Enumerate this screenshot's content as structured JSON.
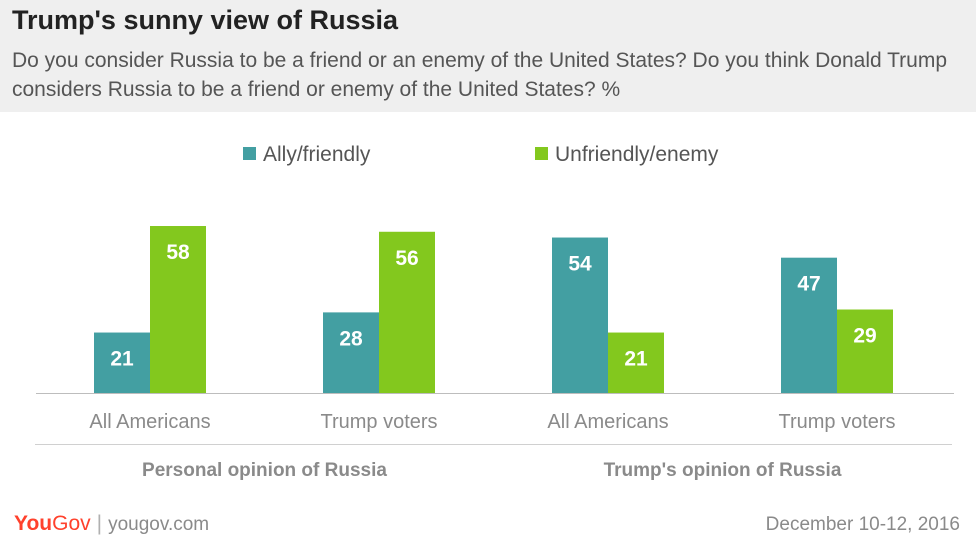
{
  "header": {
    "title": "Trump's sunny view of Russia",
    "subtitle": "Do you consider Russia to be a friend or an enemy of the United States? Do you think Donald Trump considers Russia to be a friend or enemy of the United States? %"
  },
  "footer": {
    "brand_you": "You",
    "brand_gov": "Gov",
    "separator": "|",
    "url": "yougov.com",
    "date": "December 10-12, 2016"
  },
  "chart_data": {
    "type": "bar",
    "categories": [
      "All Americans",
      "Trump voters",
      "All Americans",
      "Trump voters"
    ],
    "groups": [
      {
        "label": "Personal opinion of Russia",
        "categories": [
          0,
          1
        ]
      },
      {
        "label": "Trump's opinion of Russia",
        "categories": [
          2,
          3
        ]
      }
    ],
    "series": [
      {
        "name": "Ally/friendly",
        "color": "#439fa2",
        "values": [
          21,
          28,
          54,
          47
        ]
      },
      {
        "name": "Unfriendly/enemy",
        "color": "#83c81e",
        "values": [
          58,
          56,
          21,
          29
        ]
      }
    ],
    "ylim": [
      0,
      60
    ],
    "legend_position": "top-center",
    "grid": false,
    "data_labels": "inside-top"
  }
}
